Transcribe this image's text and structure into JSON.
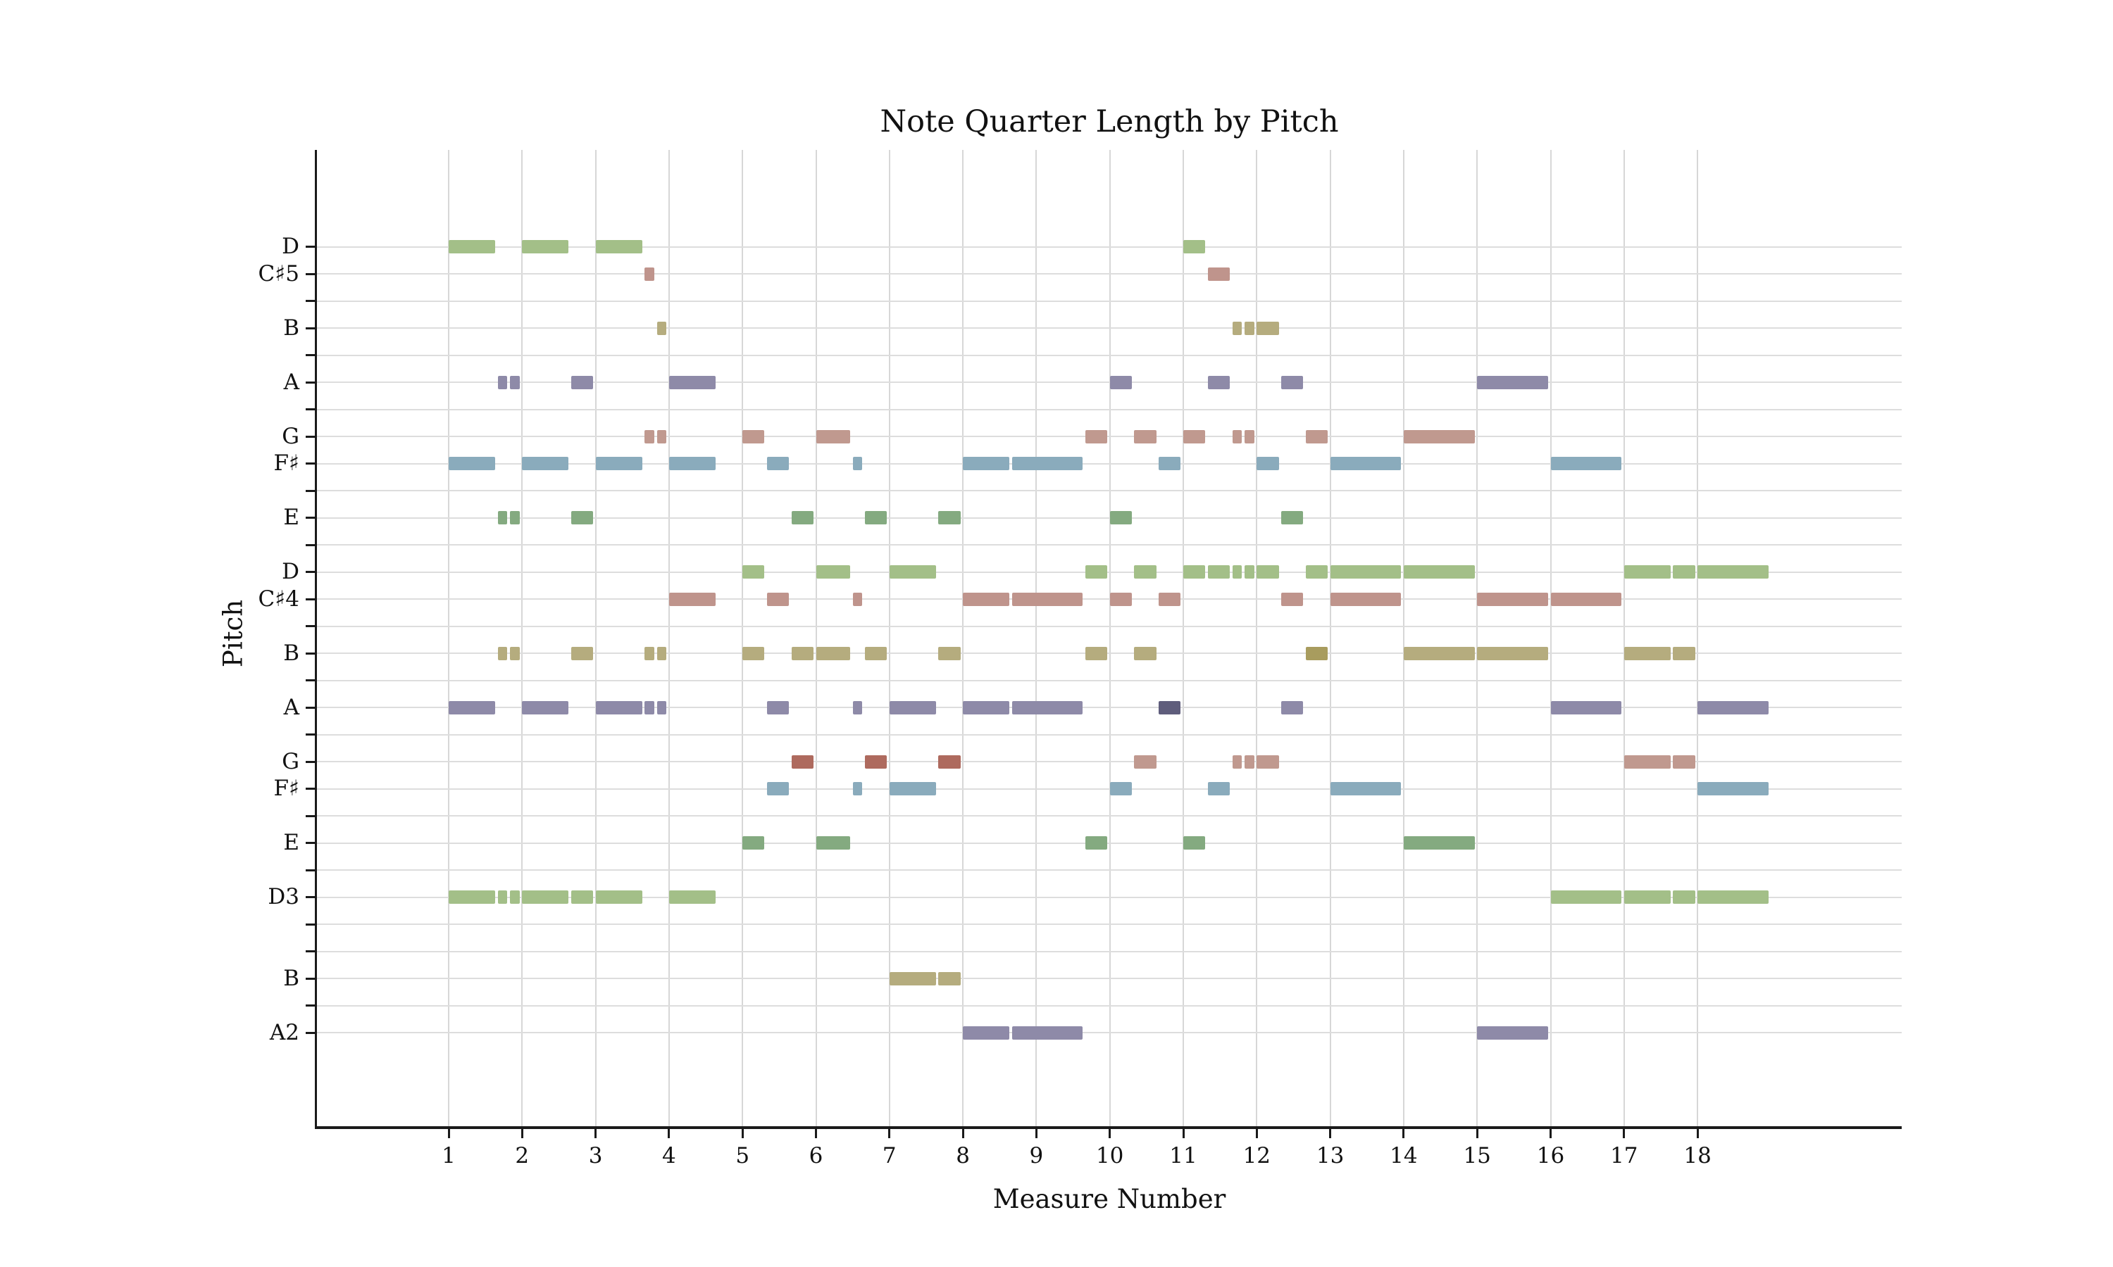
{
  "page": {
    "background": "#ffffff"
  },
  "chart_data": {
    "type": "bar",
    "subtype": "horizontal-piano-roll",
    "title": "Note Quarter Length by Pitch",
    "xlabel": "Measure Number",
    "ylabel": "Pitch",
    "grid": "on",
    "legend": "none",
    "quarters_per_measure": 3,
    "xlim_measures": [
      -0.793,
      20.78
    ],
    "ylim_midi": [
      41.55,
      77.58
    ],
    "x_ticks": [
      1,
      2,
      3,
      4,
      5,
      6,
      7,
      8,
      9,
      10,
      11,
      12,
      13,
      14,
      15,
      16,
      17,
      18
    ],
    "y_ticks": [
      {
        "midi": 45,
        "label": "A2"
      },
      {
        "midi": 46,
        "label": ""
      },
      {
        "midi": 47,
        "label": "B"
      },
      {
        "midi": 48,
        "label": ""
      },
      {
        "midi": 49,
        "label": ""
      },
      {
        "midi": 50,
        "label": "D3"
      },
      {
        "midi": 51,
        "label": ""
      },
      {
        "midi": 52,
        "label": "E"
      },
      {
        "midi": 53,
        "label": ""
      },
      {
        "midi": 54,
        "label": "F♯"
      },
      {
        "midi": 55,
        "label": "G"
      },
      {
        "midi": 56,
        "label": ""
      },
      {
        "midi": 57,
        "label": "A"
      },
      {
        "midi": 58,
        "label": ""
      },
      {
        "midi": 59,
        "label": "B"
      },
      {
        "midi": 60,
        "label": ""
      },
      {
        "midi": 61,
        "label": "C♯4"
      },
      {
        "midi": 62,
        "label": "D"
      },
      {
        "midi": 63,
        "label": ""
      },
      {
        "midi": 64,
        "label": "E"
      },
      {
        "midi": 65,
        "label": ""
      },
      {
        "midi": 66,
        "label": "F♯"
      },
      {
        "midi": 67,
        "label": "G"
      },
      {
        "midi": 68,
        "label": ""
      },
      {
        "midi": 69,
        "label": "A"
      },
      {
        "midi": 70,
        "label": ""
      },
      {
        "midi": 71,
        "label": "B"
      },
      {
        "midi": 72,
        "label": ""
      },
      {
        "midi": 73,
        "label": "C♯5"
      },
      {
        "midi": 74,
        "label": "D"
      }
    ],
    "pitch_midi": {
      "D5": 74,
      "C#5": 73,
      "B4": 71,
      "A4": 69,
      "G4": 67,
      "F#4": 66,
      "E4": 64,
      "D4": 62,
      "C#4": 61,
      "B3": 59,
      "A3": 57,
      "G3": 55,
      "F#3": 54,
      "E3": 52,
      "D3": 50,
      "B2": 47,
      "A2": 45
    },
    "pitch_class_colors": {
      "D": "#a3bf88",
      "E": "#84aa80",
      "F#": "#8aabbc",
      "G": "#c0998f",
      "A": "#8e8aa8",
      "B": "#b5ac7e",
      "C#": "#bf948c"
    },
    "overlap_colors": {
      "G": "#ae6a5e",
      "A": "#5f5d7c",
      "B": "#a89c5e"
    },
    "notes_format": [
      "pitch",
      "offset_quarters_from_measure_1",
      "quarter_length",
      "overlap_flag"
    ],
    "notes": [
      [
        "D5",
        0,
        2
      ],
      [
        "D5",
        3,
        2
      ],
      [
        "D5",
        6,
        2
      ],
      [
        "D5",
        30,
        1
      ],
      [
        "C#5",
        8,
        0.5
      ],
      [
        "C#5",
        31,
        1
      ],
      [
        "B4",
        8.5,
        0.5
      ],
      [
        "B4",
        32,
        0.5
      ],
      [
        "B4",
        32.5,
        0.5
      ],
      [
        "B4",
        33,
        1
      ],
      [
        "A4",
        2,
        0.5
      ],
      [
        "A4",
        2.5,
        0.5
      ],
      [
        "A4",
        5,
        1
      ],
      [
        "A4",
        9,
        2
      ],
      [
        "A4",
        27,
        1
      ],
      [
        "A4",
        31,
        1
      ],
      [
        "A4",
        34,
        1
      ],
      [
        "A4",
        42,
        3
      ],
      [
        "G4",
        8,
        0.5
      ],
      [
        "G4",
        8.5,
        0.5
      ],
      [
        "G4",
        12,
        1
      ],
      [
        "G4",
        15,
        1.5
      ],
      [
        "G4",
        26,
        1
      ],
      [
        "G4",
        28,
        1
      ],
      [
        "G4",
        30,
        1
      ],
      [
        "G4",
        32,
        0.5
      ],
      [
        "G4",
        32.5,
        0.5
      ],
      [
        "G4",
        35,
        1
      ],
      [
        "G4",
        39,
        3
      ],
      [
        "F#4",
        0,
        2
      ],
      [
        "F#4",
        3,
        2
      ],
      [
        "F#4",
        6,
        2
      ],
      [
        "F#4",
        9,
        2
      ],
      [
        "F#4",
        13,
        1
      ],
      [
        "F#4",
        16.5,
        0.5
      ],
      [
        "F#4",
        21,
        2
      ],
      [
        "F#4",
        23,
        3
      ],
      [
        "F#4",
        29,
        1
      ],
      [
        "F#4",
        33,
        1
      ],
      [
        "F#4",
        36,
        3
      ],
      [
        "F#4",
        45,
        3
      ],
      [
        "E4",
        2,
        0.5
      ],
      [
        "E4",
        2.5,
        0.5
      ],
      [
        "E4",
        5,
        1
      ],
      [
        "E4",
        14,
        1
      ],
      [
        "E4",
        17,
        1
      ],
      [
        "E4",
        20,
        1
      ],
      [
        "E4",
        27,
        1
      ],
      [
        "E4",
        34,
        1
      ],
      [
        "D4",
        12,
        1
      ],
      [
        "D4",
        15,
        1.5
      ],
      [
        "D4",
        18,
        2
      ],
      [
        "D4",
        26,
        1
      ],
      [
        "D4",
        28,
        1
      ],
      [
        "D4",
        30,
        1
      ],
      [
        "D4",
        31,
        1
      ],
      [
        "D4",
        32,
        0.5
      ],
      [
        "D4",
        32.5,
        0.5
      ],
      [
        "D4",
        33,
        1
      ],
      [
        "D4",
        35,
        1
      ],
      [
        "D4",
        36,
        3
      ],
      [
        "D4",
        39,
        3
      ],
      [
        "D4",
        48,
        2
      ],
      [
        "D4",
        50,
        1
      ],
      [
        "D4",
        51,
        3
      ],
      [
        "C#4",
        9,
        2
      ],
      [
        "C#4",
        13,
        1
      ],
      [
        "C#4",
        16.5,
        0.5
      ],
      [
        "C#4",
        21,
        2
      ],
      [
        "C#4",
        23,
        3
      ],
      [
        "C#4",
        27,
        1
      ],
      [
        "C#4",
        29,
        1
      ],
      [
        "C#4",
        34,
        1
      ],
      [
        "C#4",
        36,
        3
      ],
      [
        "C#4",
        42,
        3
      ],
      [
        "C#4",
        45,
        3
      ],
      [
        "B3",
        2,
        0.5
      ],
      [
        "B3",
        2.5,
        0.5
      ],
      [
        "B3",
        5,
        1
      ],
      [
        "B3",
        8,
        0.5
      ],
      [
        "B3",
        8.5,
        0.5
      ],
      [
        "B3",
        12,
        1
      ],
      [
        "B3",
        14,
        1
      ],
      [
        "B3",
        15,
        1.5
      ],
      [
        "B3",
        17,
        1
      ],
      [
        "B3",
        20,
        1
      ],
      [
        "B3",
        26,
        1
      ],
      [
        "B3",
        28,
        1
      ],
      [
        "B3",
        35,
        1,
        1
      ],
      [
        "B3",
        39,
        3
      ],
      [
        "B3",
        42,
        3
      ],
      [
        "B3",
        48,
        2
      ],
      [
        "B3",
        50,
        1
      ],
      [
        "A3",
        0,
        2
      ],
      [
        "A3",
        3,
        2
      ],
      [
        "A3",
        6,
        2
      ],
      [
        "A3",
        8,
        0.5
      ],
      [
        "A3",
        8.5,
        0.5
      ],
      [
        "A3",
        13,
        1
      ],
      [
        "A3",
        16.5,
        0.5
      ],
      [
        "A3",
        18,
        2
      ],
      [
        "A3",
        21,
        2
      ],
      [
        "A3",
        23,
        3
      ],
      [
        "A3",
        29,
        1,
        1
      ],
      [
        "A3",
        34,
        1
      ],
      [
        "A3",
        45,
        3
      ],
      [
        "A3",
        51,
        3
      ],
      [
        "G3",
        14,
        1,
        1
      ],
      [
        "G3",
        17,
        1,
        1
      ],
      [
        "G3",
        20,
        1,
        1
      ],
      [
        "G3",
        28,
        1
      ],
      [
        "G3",
        32,
        0.5
      ],
      [
        "G3",
        32.5,
        0.5
      ],
      [
        "G3",
        33,
        1
      ],
      [
        "G3",
        48,
        2
      ],
      [
        "G3",
        50,
        1
      ],
      [
        "F#3",
        13,
        1
      ],
      [
        "F#3",
        16.5,
        0.5
      ],
      [
        "F#3",
        18,
        2
      ],
      [
        "F#3",
        27,
        1
      ],
      [
        "F#3",
        31,
        1
      ],
      [
        "F#3",
        36,
        3
      ],
      [
        "F#3",
        51,
        3
      ],
      [
        "E3",
        12,
        1
      ],
      [
        "E3",
        15,
        1.5
      ],
      [
        "E3",
        26,
        1
      ],
      [
        "E3",
        30,
        1
      ],
      [
        "E3",
        39,
        3
      ],
      [
        "D3",
        0,
        2
      ],
      [
        "D3",
        2,
        0.5
      ],
      [
        "D3",
        2.5,
        0.5
      ],
      [
        "D3",
        3,
        2
      ],
      [
        "D3",
        5,
        1
      ],
      [
        "D3",
        6,
        2
      ],
      [
        "D3",
        9,
        2
      ],
      [
        "D3",
        45,
        3
      ],
      [
        "D3",
        48,
        2
      ],
      [
        "D3",
        50,
        1
      ],
      [
        "D3",
        51,
        3
      ],
      [
        "B2",
        18,
        2
      ],
      [
        "B2",
        20,
        1
      ],
      [
        "A2",
        21,
        2
      ],
      [
        "A2",
        23,
        3
      ],
      [
        "A2",
        42,
        3
      ]
    ]
  }
}
